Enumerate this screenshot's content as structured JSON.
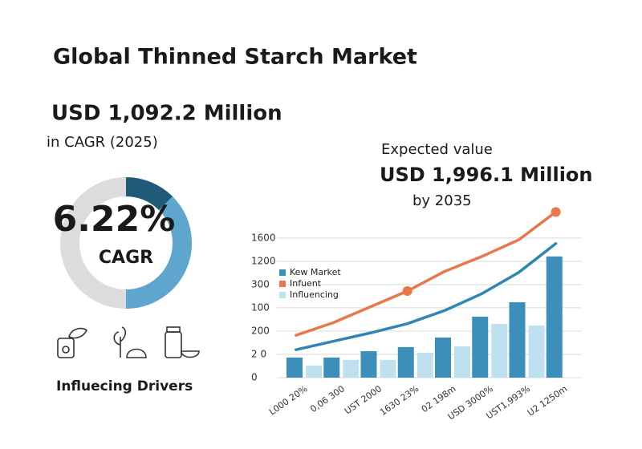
{
  "header": {
    "title": "Global Thinned Starch Market",
    "current_value": "USD 1,092.2 Million",
    "current_caption": "in CAGR (2025)"
  },
  "expected": {
    "label": "Expected value",
    "value": "USD 1,996.1 Million",
    "year": "by 2035"
  },
  "donut": {
    "value": "6.22%",
    "label": "CAGR"
  },
  "drivers": {
    "label": "Influecing Drivers"
  },
  "chart_data": {
    "type": "bar",
    "categories": [
      "L000 20%",
      "0,06 300",
      "UST 2000",
      "1630 23%",
      "02 198m",
      "USD 3000%",
      "UST1,993%",
      "U2 1250m"
    ],
    "series": [
      {
        "name": "Kew Market",
        "color": "#3d8fbb",
        "kind": "bar",
        "values": [
          216,
          216,
          284,
          328,
          431,
          655,
          810,
          1302
        ]
      },
      {
        "name": "Infuent",
        "color": "#e8784a",
        "kind": "line",
        "values": [
          455,
          590,
          760,
          930,
          1140,
          1300,
          1480,
          1780
        ]
      },
      {
        "name": "Influencing",
        "color": "#bfe0ee",
        "kind": "bar",
        "values": [
          130,
          190,
          190,
          267,
          336,
          578,
          560,
          null
        ]
      },
      {
        "color": "#2f86b5",
        "kind": "line",
        "values": [
          300,
          390,
          480,
          580,
          720,
          900,
          1130,
          1440
        ]
      }
    ],
    "ylim": [
      0,
      1800
    ],
    "yticks": [
      0,
      {
        "value": 250,
        "label": "2 0"
      },
      {
        "value": 500,
        "label": "200"
      },
      {
        "value": 750,
        "label": "100"
      },
      {
        "value": 1000,
        "label": "300"
      },
      {
        "value": 1250,
        "label": "1200"
      },
      {
        "value": 1500,
        "label": "1600"
      }
    ],
    "grid": true
  }
}
